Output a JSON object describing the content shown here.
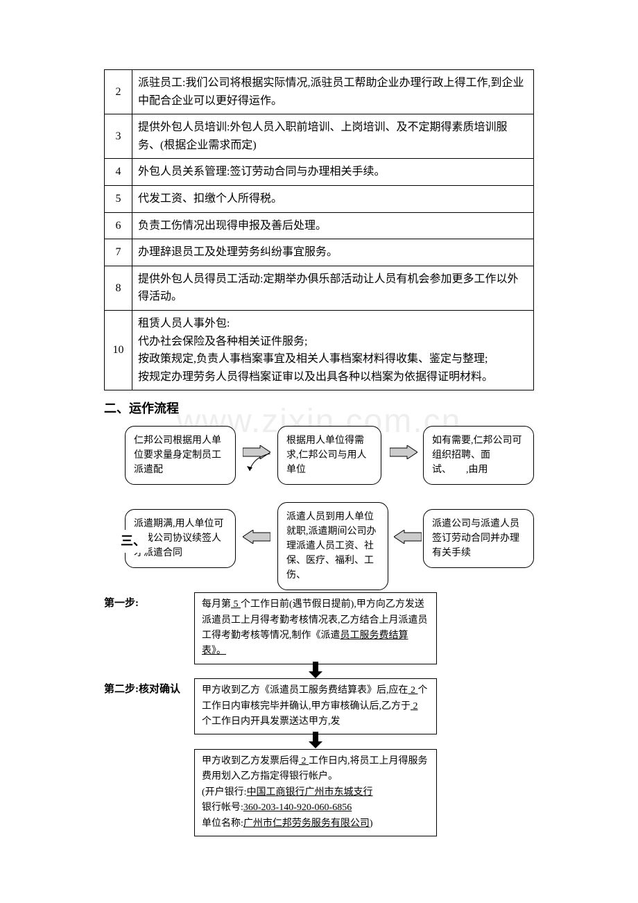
{
  "watermark": "www.zixin.com.cn",
  "table": {
    "rows": [
      {
        "n": "2",
        "t": "派驻员工:我们公司将根据实际情况,派驻员工帮助企业办理行政上得工作,到企业中配合企业可以更好得运作。"
      },
      {
        "n": "3",
        "t": "提供外包人员培训:外包人员入职前培训、上岗培训、及不定期得素质培训服务、(根据企业需求而定)"
      },
      {
        "n": "4",
        "t": "外包人员关系管理:签订劳动合同与办理相关手续。"
      },
      {
        "n": "5",
        "t": "代发工资、扣缴个人所得税。"
      },
      {
        "n": "6",
        "t": "负责工伤情况出现得申报及善后处理。"
      },
      {
        "n": "7",
        "t": "办理辞退员工及处理劳务纠纷事宜服务。"
      },
      {
        "n": "8",
        "t": "提供外包人员得员工活动:定期举办俱乐部活动让人员有机会参加更多工作以外得活动。"
      },
      {
        "n": "10",
        "t": "租赁人员人事外包:\n代办社会保险及各种相关证件服务;\n按政策规定,负责人事档案事宜及相关人事档案材料得收集、鉴定与整理;\n按规定办理劳务人员得档案证审以及出具各种以档案为依据得证明材料。"
      }
    ]
  },
  "heading2": "二、运作流程",
  "flow": {
    "b1": "仁邦公司根据用人单位要求量身定制员工派遣配",
    "b2": "根据用人单位得需求,仁邦公司与用人单位",
    "b3": "如有需要,仁邦公司可组织招聘、面试、　　,由用",
    "b4": "派遣期满,用人单位可与我公司协议续签人才派遣合同",
    "b5": "派遣人员到用人单位就职,派遣期间公司办理派遣人员工资、社保、医疗、福利、工伤、",
    "b6": "派遣公司与派遣人员签订劳动合同并办理有关手续"
  },
  "heading3": "三、",
  "steps": {
    "s1label": "第一步:",
    "s1": "每月第 5 个工作日前(遇节假日提前),甲方向乙方发送派遣员工上月得考勤考核情况表,乙方结合上月派遣员工得考勤考核等情况,制作《派遣员工服务费结算表》。",
    "s2label": "第二步:核对确认",
    "s2": "甲方收到乙方《派遣员工服务费结算表》后,应在 2 个工作日内审核完毕并确认,甲方审核确认后,乙方于 2 个工作日内开具发票送达甲方,发",
    "s3a": "甲方收到乙方发票后得 2 工作日内,将员工上月得服务费用划入乙方指定得银行帐户。",
    "s3b": "(开户银行:中国工商银行广州市东城支行",
    "s3c": "银行帐号:360-203-140-920-060-6856",
    "s3d": "单位名称:广州市仁邦劳务服务有限公司)"
  }
}
